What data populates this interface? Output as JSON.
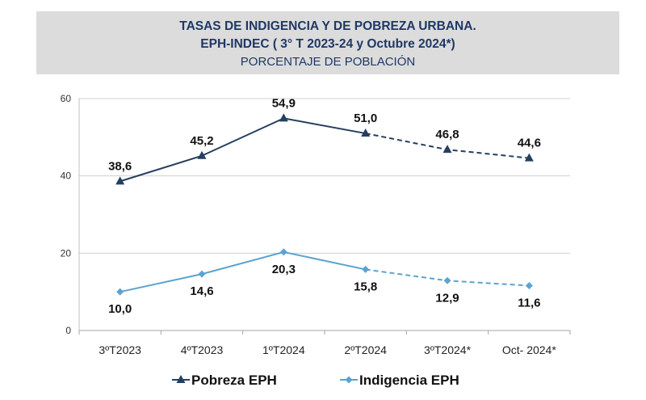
{
  "header": {
    "title_line1": "TASAS DE INDIGENCIA Y DE POBREZA URBANA.",
    "title_line2": "EPH-INDEC ( 3°  T 2023-24 y  Octubre 2024*)",
    "subtitle": "PORCENTAJE DE POBLACIÓN"
  },
  "chart_data": {
    "type": "line",
    "title": "TASAS DE INDIGENCIA Y DE POBREZA URBANA. EPH-INDEC ( 3°  T 2023-24 y  Octubre 2024*)",
    "subtitle": "PORCENTAJE DE POBLACIÓN",
    "categories": [
      "3ºT2023",
      "4ºT2023",
      "1ºT2024",
      "2ºT2024",
      "3ºT2024*",
      "Oct- 2024*"
    ],
    "ylim": [
      0,
      60
    ],
    "yticks": [
      0,
      20,
      40,
      60
    ],
    "grid": true,
    "legend_position": "bottom",
    "dashed_from_index": 3,
    "series": [
      {
        "name": "Pobreza EPH",
        "values": [
          38.6,
          45.2,
          54.9,
          51.0,
          46.8,
          44.6
        ],
        "labels": [
          "38,6",
          "45,2",
          "54,9",
          "51,0",
          "46,8",
          "44,6"
        ],
        "label_position": "above",
        "marker": "triangle",
        "color": "#243f60"
      },
      {
        "name": "Indigencia EPH",
        "values": [
          10.0,
          14.6,
          20.3,
          15.8,
          12.9,
          11.6
        ],
        "labels": [
          "10,0",
          "14,6",
          "20,3",
          "15,8",
          "12,9",
          "11,6"
        ],
        "label_position": "below",
        "marker": "diamond",
        "color": "#5ba3d0"
      }
    ]
  }
}
